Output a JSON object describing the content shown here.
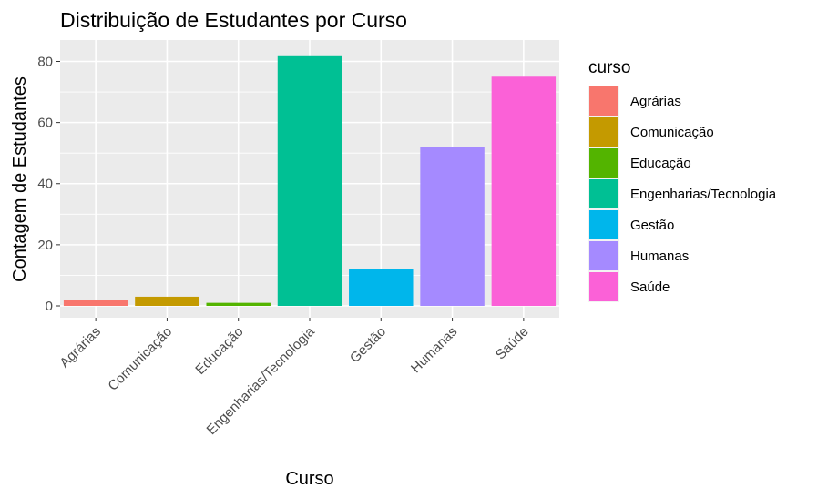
{
  "chart_data": {
    "type": "bar",
    "title": "Distribuição de Estudantes por Curso",
    "xlabel": "Curso",
    "ylabel": "Contagem de Estudantes",
    "categories": [
      "Agrárias",
      "Comunicação",
      "Educação",
      "Engenharias/Tecnologia",
      "Gestão",
      "Humanas",
      "Saúde"
    ],
    "values": [
      2,
      3,
      1,
      82,
      12,
      52,
      75
    ],
    "colors": [
      "#F8766D",
      "#C49A00",
      "#53B400",
      "#00C094",
      "#00B6EB",
      "#A58AFF",
      "#FB61D7"
    ],
    "ylim": [
      0,
      87
    ],
    "yticks": [
      0,
      20,
      40,
      60,
      80
    ],
    "grid": true,
    "legend": {
      "title": "curso",
      "position": "right"
    }
  }
}
